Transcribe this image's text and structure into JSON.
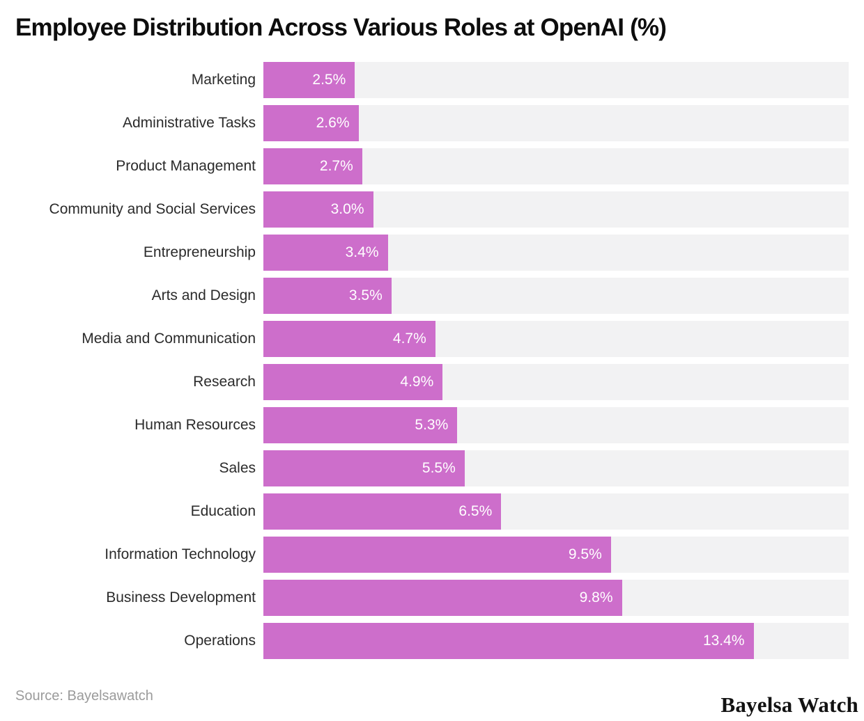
{
  "chart_data": {
    "type": "bar",
    "orientation": "horizontal",
    "title": "Employee Distribution Across Various Roles at OpenAI (%)",
    "categories": [
      "Marketing",
      "Administrative Tasks",
      "Product Management",
      "Community and Social Services",
      "Entrepreneurship",
      "Arts and Design",
      "Media and Communication",
      "Research",
      "Human Resources",
      "Sales",
      "Education",
      "Information Technology",
      "Business Development",
      "Operations"
    ],
    "values": [
      2.5,
      2.6,
      2.7,
      3.0,
      3.4,
      3.5,
      4.7,
      4.9,
      5.3,
      5.5,
      6.5,
      9.5,
      9.8,
      13.4
    ],
    "value_labels": [
      "2.5%",
      "2.6%",
      "2.7%",
      "3.0%",
      "3.4%",
      "3.5%",
      "4.7%",
      "4.9%",
      "5.3%",
      "5.5%",
      "6.5%",
      "9.5%",
      "9.8%",
      "13.4%"
    ],
    "xlim": [
      0,
      16
    ],
    "grid": false,
    "legend": false,
    "bar_color": "#cd6ecb",
    "track_color": "#f2f2f3",
    "value_label_color": "#ffffff",
    "category_label_color": "#2b2b2b"
  },
  "footer": {
    "source": "Source: Bayelsawatch",
    "brand": "Bayelsa Watch"
  }
}
